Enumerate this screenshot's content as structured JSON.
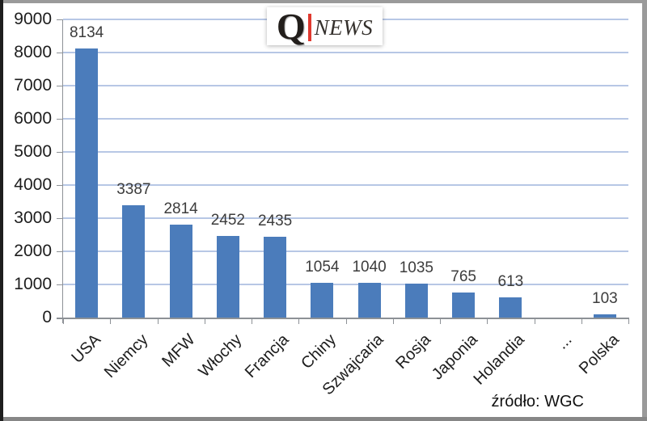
{
  "chart_data": {
    "type": "bar",
    "categories": [
      "USA",
      "Niemcy",
      "MFW",
      "Włochy",
      "Francja",
      "Chiny",
      "Szwajcaria",
      "Rosja",
      "Japonia",
      "Holandia",
      "...",
      "Polska"
    ],
    "values": [
      8134,
      3387,
      2814,
      2452,
      2435,
      1054,
      1040,
      1035,
      765,
      613,
      null,
      103
    ],
    "data_labels": [
      "8134",
      "3387",
      "2814",
      "2452",
      "2435",
      "1054",
      "1040",
      "1035",
      "765",
      "613",
      "",
      "103"
    ],
    "title": "",
    "xlabel": "",
    "ylabel": "",
    "ylim": [
      0,
      9000
    ],
    "ytick_step": 1000,
    "grid": true,
    "legend": null,
    "bar_color": "#4b7cbb",
    "gridline_color": "#b7c7e5",
    "axis_color": "#8d9196"
  },
  "logo": {
    "q": "Q",
    "news": "NEWS",
    "divider_color": "#e0392f"
  },
  "source_label": "źródło: WGC"
}
